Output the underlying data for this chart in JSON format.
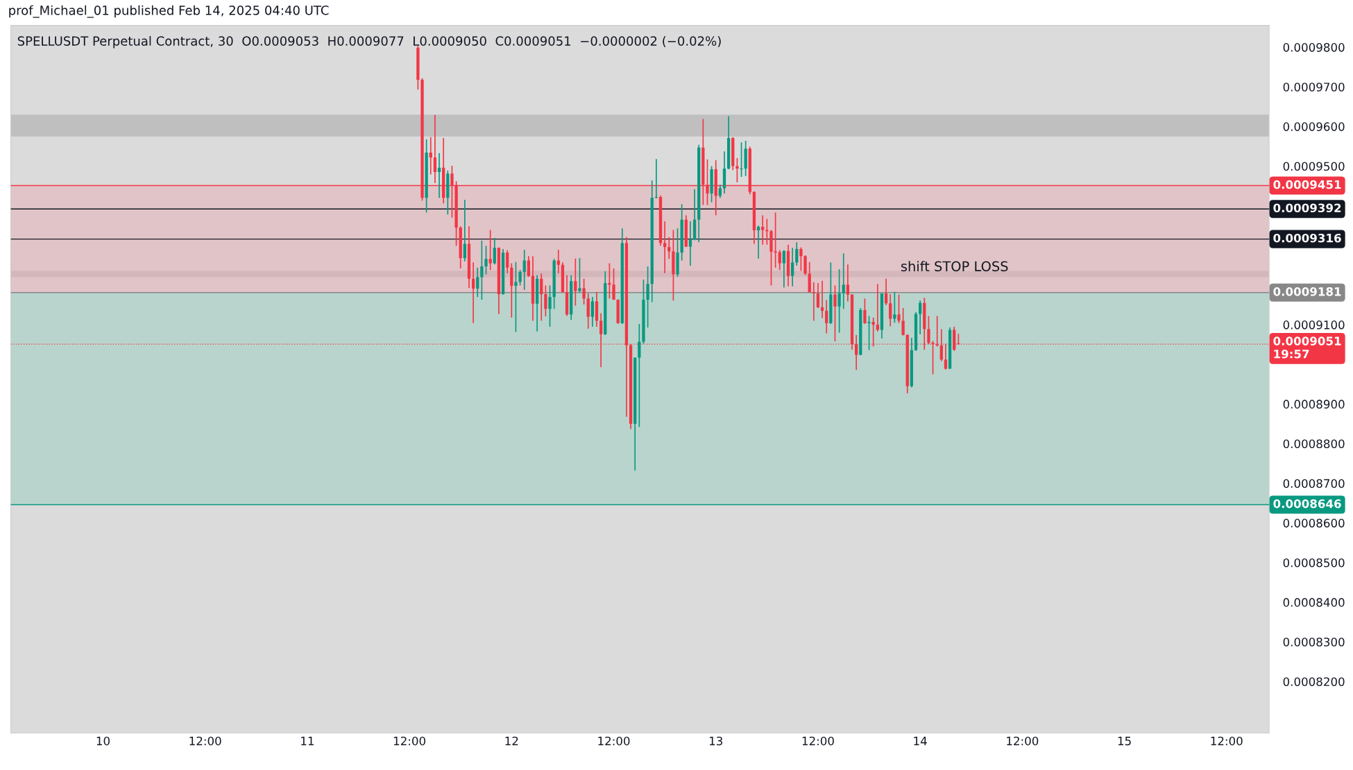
{
  "chart_data": {
    "type": "candlestick",
    "title": "prof_Michael_01 published Feb 14, 2025 04:40 UTC",
    "subtitle": "SPELLUSDT Perpetual Contract, 30  O0.0009053  H0.0009077  L0.0009050  C0.0009051  −0.0000002 (−0.02%)",
    "x": [
      "2025-02-11T13:00",
      "2025-02-11T13:30",
      "2025-02-11T14:00",
      "2025-02-11T14:30",
      "2025-02-11T15:00",
      "2025-02-11T15:30",
      "2025-02-11T16:00",
      "2025-02-11T16:30",
      "2025-02-11T17:00",
      "2025-02-11T17:30",
      "2025-02-11T18:00",
      "2025-02-11T18:30",
      "2025-02-11T19:00",
      "2025-02-11T19:30",
      "2025-02-11T20:00",
      "2025-02-11T20:30",
      "2025-02-11T21:00",
      "2025-02-11T21:30",
      "2025-02-11T22:00",
      "2025-02-11T22:30",
      "2025-02-11T23:00",
      "2025-02-11T23:30",
      "2025-02-12T00:00",
      "2025-02-12T00:30",
      "2025-02-12T01:00",
      "2025-02-12T01:30",
      "2025-02-12T02:00",
      "2025-02-12T02:30",
      "2025-02-12T03:00",
      "2025-02-12T03:30",
      "2025-02-12T04:00",
      "2025-02-12T04:30",
      "2025-02-12T05:00",
      "2025-02-12T05:30",
      "2025-02-12T06:00",
      "2025-02-12T06:30",
      "2025-02-12T07:00",
      "2025-02-12T07:30",
      "2025-02-12T08:00",
      "2025-02-12T08:30",
      "2025-02-12T09:00",
      "2025-02-12T09:30",
      "2025-02-12T10:00",
      "2025-02-12T10:30",
      "2025-02-12T11:00",
      "2025-02-12T11:30",
      "2025-02-12T12:00",
      "2025-02-12T12:30",
      "2025-02-12T13:00",
      "2025-02-12T13:30",
      "2025-02-12T14:00",
      "2025-02-12T14:30",
      "2025-02-12T15:00",
      "2025-02-12T15:30",
      "2025-02-12T16:00",
      "2025-02-12T16:30",
      "2025-02-12T17:00",
      "2025-02-12T17:30",
      "2025-02-12T18:00",
      "2025-02-12T18:30",
      "2025-02-12T19:00",
      "2025-02-12T19:30",
      "2025-02-12T20:00",
      "2025-02-12T20:30",
      "2025-02-12T21:00",
      "2025-02-12T21:30",
      "2025-02-12T22:00",
      "2025-02-12T22:30",
      "2025-02-12T23:00",
      "2025-02-12T23:30",
      "2025-02-13T00:00",
      "2025-02-13T00:30",
      "2025-02-13T01:00",
      "2025-02-13T01:30",
      "2025-02-13T02:00",
      "2025-02-13T02:30",
      "2025-02-13T03:00",
      "2025-02-13T03:30",
      "2025-02-13T04:00",
      "2025-02-13T04:30",
      "2025-02-13T05:00",
      "2025-02-13T05:30",
      "2025-02-13T06:00",
      "2025-02-13T06:30",
      "2025-02-13T07:00",
      "2025-02-13T07:30",
      "2025-02-13T08:00",
      "2025-02-13T08:30",
      "2025-02-13T09:00",
      "2025-02-13T09:30",
      "2025-02-13T10:00",
      "2025-02-13T10:30",
      "2025-02-13T11:00",
      "2025-02-13T11:30",
      "2025-02-13T12:00",
      "2025-02-13T12:30",
      "2025-02-13T13:00",
      "2025-02-13T13:30",
      "2025-02-13T14:00",
      "2025-02-13T14:30",
      "2025-02-13T15:00",
      "2025-02-13T15:30",
      "2025-02-13T16:00",
      "2025-02-13T16:30",
      "2025-02-13T17:00",
      "2025-02-13T17:30",
      "2025-02-13T18:00",
      "2025-02-13T18:30",
      "2025-02-13T19:00",
      "2025-02-13T19:30",
      "2025-02-13T20:00",
      "2025-02-13T20:30",
      "2025-02-13T21:00",
      "2025-02-13T21:30",
      "2025-02-13T22:00",
      "2025-02-13T22:30",
      "2025-02-13T23:00",
      "2025-02-13T23:30",
      "2025-02-14T00:00",
      "2025-02-14T00:30",
      "2025-02-14T01:00",
      "2025-02-14T01:30",
      "2025-02-14T02:00",
      "2025-02-14T02:30",
      "2025-02-14T03:00",
      "2025-02-14T03:30",
      "2025-02-14T04:00",
      "2025-02-14T04:30"
    ],
    "ohlc": [
      [
        0.0009799,
        0.0009803,
        0.0009693,
        0.0009718
      ],
      [
        0.0009718,
        0.0009722,
        0.0009413,
        0.000942
      ],
      [
        0.000942,
        0.0009568,
        0.0009383,
        0.0009534
      ],
      [
        0.0009534,
        0.0009573,
        0.0009479,
        0.0009522
      ],
      [
        0.0009522,
        0.0009629,
        0.0009457,
        0.0009485
      ],
      [
        0.0009485,
        0.0009533,
        0.000942,
        0.0009496
      ],
      [
        0.0009496,
        0.0009571,
        0.0009406,
        0.000942
      ],
      [
        0.000942,
        0.0009489,
        0.0009378,
        0.0009481
      ],
      [
        0.0009481,
        0.0009501,
        0.000937,
        0.0009451
      ],
      [
        0.0009451,
        0.0009462,
        0.0009299,
        0.0009345
      ],
      [
        0.0009345,
        0.0009348,
        0.0009242,
        0.0009268
      ],
      [
        0.0009268,
        0.0009415,
        0.000926,
        0.0009304
      ],
      [
        0.0009304,
        0.0009348,
        0.0009193,
        0.0009216
      ],
      [
        0.0009216,
        0.0009257,
        0.0009104,
        0.0009191
      ],
      [
        0.0009191,
        0.0009244,
        0.000917,
        0.000922
      ],
      [
        0.000922,
        0.0009312,
        0.0009163,
        0.0009247
      ],
      [
        0.0009247,
        0.0009299,
        0.0009227,
        0.0009266
      ],
      [
        0.0009266,
        0.0009339,
        0.0009238,
        0.0009255
      ],
      [
        0.0009255,
        0.0009319,
        0.0009252,
        0.0009294
      ],
      [
        0.0009294,
        0.0009295,
        0.0009127,
        0.0009177
      ],
      [
        0.0009177,
        0.0009291,
        0.0009176,
        0.0009282
      ],
      [
        0.0009282,
        0.0009288,
        0.000923,
        0.0009244
      ],
      [
        0.0009244,
        0.0009255,
        0.0009118,
        0.0009198
      ],
      [
        0.0009198,
        0.0009258,
        0.0009082,
        0.0009208
      ],
      [
        0.0009208,
        0.0009238,
        0.0009199,
        0.0009233
      ],
      [
        0.0009233,
        0.0009289,
        0.0009188,
        0.0009262
      ],
      [
        0.0009262,
        0.0009273,
        0.0009221,
        0.0009223
      ],
      [
        0.0009223,
        0.0009273,
        0.000911,
        0.0009153
      ],
      [
        0.0009153,
        0.0009225,
        0.0009083,
        0.0009216
      ],
      [
        0.0009216,
        0.0009229,
        0.000911,
        0.0009177
      ],
      [
        0.0009177,
        0.0009199,
        0.0009121,
        0.000914
      ],
      [
        0.000914,
        0.0009199,
        0.0009095,
        0.000917
      ],
      [
        0.000917,
        0.0009266,
        0.000914,
        0.0009262
      ],
      [
        0.0009262,
        0.0009289,
        0.000923,
        0.0009251
      ],
      [
        0.0009251,
        0.0009257,
        0.0009181,
        0.0009182
      ],
      [
        0.0009182,
        0.0009225,
        0.0009122,
        0.0009126
      ],
      [
        0.0009126,
        0.0009225,
        0.0009112,
        0.000921
      ],
      [
        0.000921,
        0.0009267,
        0.0009148,
        0.0009185
      ],
      [
        0.0009185,
        0.0009268,
        0.0009181,
        0.0009192
      ],
      [
        0.0009192,
        0.0009216,
        0.0009151,
        0.0009166
      ],
      [
        0.0009166,
        0.0009179,
        0.000909,
        0.000912
      ],
      [
        0.000912,
        0.000917,
        0.0009095,
        0.0009159
      ],
      [
        0.0009159,
        0.0009183,
        0.0009095,
        0.000911
      ],
      [
        0.000911,
        0.0009129,
        0.0008993,
        0.0009076
      ],
      [
        0.0009076,
        0.0009235,
        0.0009074,
        0.0009205
      ],
      [
        0.0009205,
        0.0009255,
        0.0009166,
        0.0009201
      ],
      [
        0.0009201,
        0.0009242,
        0.0009163,
        0.0009163
      ],
      [
        0.0009163,
        0.0009164,
        0.0009102,
        0.0009104
      ],
      [
        0.0009104,
        0.0009343,
        0.0009102,
        0.0009306
      ],
      [
        0.0009306,
        0.0009321,
        0.0008868,
        0.0009048
      ],
      [
        0.0009048,
        0.0009051,
        0.0008837,
        0.000885
      ],
      [
        0.000885,
        0.0009017,
        0.0008732,
        0.0009017
      ],
      [
        0.0009017,
        0.0009102,
        0.0008842,
        0.0009057
      ],
      [
        0.0009057,
        0.0009214,
        0.0009052,
        0.0009163
      ],
      [
        0.0009163,
        0.0009247,
        0.0009093,
        0.0009203
      ],
      [
        0.0009203,
        0.0009464,
        0.0009157,
        0.000942
      ],
      [
        0.000942,
        0.0009518,
        0.0009419,
        0.0009422
      ],
      [
        0.0009422,
        0.0009426,
        0.0009299,
        0.0009306
      ],
      [
        0.0009306,
        0.0009361,
        0.000923,
        0.0009296
      ],
      [
        0.0009296,
        0.0009321,
        0.0009266,
        0.0009285
      ],
      [
        0.0009285,
        0.0009339,
        0.0009161,
        0.0009227
      ],
      [
        0.0009227,
        0.0009343,
        0.0009221,
        0.0009282
      ],
      [
        0.0009282,
        0.0009404,
        0.0009262,
        0.0009365
      ],
      [
        0.0009365,
        0.0009376,
        0.0009296,
        0.0009297
      ],
      [
        0.0009297,
        0.0009361,
        0.0009249,
        0.0009315
      ],
      [
        0.0009315,
        0.0009442,
        0.0009313,
        0.0009365
      ],
      [
        0.0009365,
        0.0009554,
        0.0009308,
        0.0009547
      ],
      [
        0.0009547,
        0.0009619,
        0.0009402,
        0.0009453
      ],
      [
        0.0009453,
        0.0009517,
        0.0009402,
        0.0009431
      ],
      [
        0.0009431,
        0.00095,
        0.0009409,
        0.0009492
      ],
      [
        0.0009492,
        0.0009515,
        0.0009376,
        0.0009425
      ],
      [
        0.0009425,
        0.0009453,
        0.000942,
        0.0009444
      ],
      [
        0.0009444,
        0.0009537,
        0.0009431,
        0.0009494
      ],
      [
        0.0009494,
        0.0009626,
        0.0009492,
        0.0009571
      ],
      [
        0.0009571,
        0.0009573,
        0.000949,
        0.00095
      ],
      [
        0.00095,
        0.000952,
        0.0009459,
        0.0009494
      ],
      [
        0.0009492,
        0.000956,
        0.0009473,
        0.0009494
      ],
      [
        0.0009494,
        0.0009564,
        0.0009475,
        0.0009544
      ],
      [
        0.0009544,
        0.0009549,
        0.0009429,
        0.0009435
      ],
      [
        0.0009435,
        0.0009436,
        0.0009304,
        0.0009338
      ],
      [
        0.0009338,
        0.000935,
        0.0009267,
        0.0009347
      ],
      [
        0.0009347,
        0.0009376,
        0.0009302,
        0.0009339
      ],
      [
        0.0009339,
        0.0009367,
        0.0009302,
        0.0009336
      ],
      [
        0.0009336,
        0.0009339,
        0.0009199,
        0.0009284
      ],
      [
        0.0009285,
        0.0009383,
        0.0009244,
        0.0009282
      ],
      [
        0.0009283,
        0.0009288,
        0.0009238,
        0.0009255
      ],
      [
        0.0009255,
        0.0009288,
        0.0009194,
        0.0009286
      ],
      [
        0.0009286,
        0.0009302,
        0.0009197,
        0.0009223
      ],
      [
        0.0009223,
        0.0009294,
        0.0009197,
        0.0009257
      ],
      [
        0.0009257,
        0.0009308,
        0.0009249,
        0.0009291
      ],
      [
        0.0009291,
        0.0009295,
        0.0009236,
        0.0009273
      ],
      [
        0.0009273,
        0.0009275,
        0.0009225,
        0.0009229
      ],
      [
        0.0009229,
        0.0009258,
        0.0009181,
        0.0009182
      ],
      [
        0.0009182,
        0.0009207,
        0.000911,
        0.0009179
      ],
      [
        0.0009179,
        0.0009205,
        0.0009142,
        0.0009144
      ],
      [
        0.0009144,
        0.0009211,
        0.0009117,
        0.0009135
      ],
      [
        0.0009135,
        0.0009162,
        0.0009078,
        0.0009104
      ],
      [
        0.0009104,
        0.0009257,
        0.0009102,
        0.0009176
      ],
      [
        0.0009176,
        0.0009199,
        0.0009058,
        0.0009146
      ],
      [
        0.0009146,
        0.000924,
        0.000908,
        0.0009179
      ],
      [
        0.0009179,
        0.000928,
        0.000914,
        0.0009201
      ],
      [
        0.0009201,
        0.0009252,
        0.0009159,
        0.0009176
      ],
      [
        0.0009176,
        0.0009177,
        0.0009037,
        0.0009051
      ],
      [
        0.0009051,
        0.0009074,
        0.0008986,
        0.0009024
      ],
      [
        0.0009024,
        0.0009142,
        0.0009023,
        0.0009137
      ],
      [
        0.0009137,
        0.0009166,
        0.0009102,
        0.0009104
      ],
      [
        0.0009104,
        0.0009122,
        0.0009036,
        0.0009107
      ],
      [
        0.0009107,
        0.0009118,
        0.0009045,
        0.00091
      ],
      [
        0.00091,
        0.0009203,
        0.0009083,
        0.0009087
      ],
      [
        0.0009087,
        0.0009179,
        0.0009065,
        0.0009179
      ],
      [
        0.0009179,
        0.0009216,
        0.0009149,
        0.0009154
      ],
      [
        0.0009154,
        0.0009177,
        0.0009096,
        0.0009115
      ],
      [
        0.0009115,
        0.0009183,
        0.0009105,
        0.0009126
      ],
      [
        0.0009126,
        0.0009176,
        0.0009104,
        0.000911
      ],
      [
        0.000911,
        0.0009142,
        0.0009073,
        0.0009074
      ],
      [
        0.0009074,
        0.0009076,
        0.0008927,
        0.0008945
      ],
      [
        0.0008945,
        0.0009067,
        0.0008942,
        0.0009036
      ],
      [
        0.0009036,
        0.0009132,
        0.0009034,
        0.0009127
      ],
      [
        0.0009127,
        0.0009161,
        0.0009076,
        0.0009155
      ],
      [
        0.0009155,
        0.0009168,
        0.0009037,
        0.0009089
      ],
      [
        0.0009089,
        0.0009122,
        0.0009051,
        0.0009054
      ],
      [
        0.0009054,
        0.0009059,
        0.0008975,
        0.0009051
      ],
      [
        0.0009051,
        0.0009122,
        0.0009045,
        0.0009048
      ],
      [
        0.0009048,
        0.0009089,
        0.0009008,
        0.0009012
      ],
      [
        0.0009012,
        0.0009052,
        0.0008987,
        0.0008989
      ],
      [
        0.0008989,
        0.0009093,
        0.0008989,
        0.0009087
      ],
      [
        0.0009087,
        0.0009095,
        0.0009034,
        0.0009037
      ],
      [
        0.0009053,
        0.0009077,
        0.000905,
        0.0009051
      ]
    ],
    "xlim": [
      "2025-02-09T13:10",
      "2025-02-15T17:00"
    ],
    "xticks": [
      {
        "value": "2025-02-10T00:00",
        "label": "10"
      },
      {
        "value": "2025-02-10T12:00",
        "label": "12:00"
      },
      {
        "value": "2025-02-11T00:00",
        "label": "11"
      },
      {
        "value": "2025-02-11T12:00",
        "label": "12:00"
      },
      {
        "value": "2025-02-12T00:00",
        "label": "12"
      },
      {
        "value": "2025-02-12T12:00",
        "label": "12:00"
      },
      {
        "value": "2025-02-13T00:00",
        "label": "13"
      },
      {
        "value": "2025-02-13T12:00",
        "label": "12:00"
      },
      {
        "value": "2025-02-14T00:00",
        "label": "14"
      },
      {
        "value": "2025-02-14T12:00",
        "label": "12:00"
      },
      {
        "value": "2025-02-15T00:00",
        "label": "15"
      },
      {
        "value": "2025-02-15T12:00",
        "label": "12:00"
      }
    ],
    "ylim": [
      0.000807,
      0.0009855
    ],
    "yticks": [
      {
        "value": 0.00082,
        "label": "0.0008200"
      },
      {
        "value": 0.00083,
        "label": "0.0008300"
      },
      {
        "value": 0.00084,
        "label": "0.0008400"
      },
      {
        "value": 0.00085,
        "label": "0.0008500"
      },
      {
        "value": 0.00086,
        "label": "0.0008600"
      },
      {
        "value": 0.00087,
        "label": "0.0008700"
      },
      {
        "value": 0.00088,
        "label": "0.0008800"
      },
      {
        "value": 0.00089,
        "label": "0.0008900"
      },
      {
        "value": 0.00091,
        "label": "0.0009100"
      },
      {
        "value": 0.00095,
        "label": "0.0009500"
      },
      {
        "value": 0.00096,
        "label": "0.0009600"
      },
      {
        "value": 0.00097,
        "label": "0.0009700"
      },
      {
        "value": 0.00098,
        "label": "0.0009800"
      }
    ],
    "bands": [
      {
        "axis": "y",
        "from": 0.0009575,
        "to": 0.000963,
        "label": null,
        "color": "#a8a8a8"
      },
      {
        "axis": "y",
        "from": 0.000922,
        "to": 0.0009236,
        "label": "shift STOP LOSS",
        "color": "#a8a8a8"
      },
      {
        "axis": "y",
        "from": 0.0009181,
        "to": 0.0009451,
        "label": null,
        "color": "#e6b0b6"
      },
      {
        "axis": "y",
        "from": 0.0008646,
        "to": 0.0009181,
        "label": null,
        "color": "#9ccdc0"
      }
    ],
    "ref_lines": [
      {
        "axis": "y",
        "value": 0.0009451,
        "label": "0.0009451",
        "color": "#f23645",
        "line_style": "solid"
      },
      {
        "axis": "y",
        "value": 0.0009392,
        "label": "0.0009392",
        "color": "#131722",
        "line_style": "solid"
      },
      {
        "axis": "y",
        "value": 0.0009316,
        "label": "0.0009316",
        "color": "#131722",
        "line_style": "solid"
      },
      {
        "axis": "y",
        "value": 0.0009181,
        "label": "0.0009181",
        "color": "#888888",
        "line_style": "solid"
      },
      {
        "axis": "y",
        "value": 0.0009051,
        "label": "0.0009051\n19:57",
        "color": "#f23645",
        "line_style": "dotted"
      },
      {
        "axis": "y",
        "value": 0.0008646,
        "label": "0.0008646",
        "color": "#089981",
        "line_style": "solid"
      }
    ]
  }
}
